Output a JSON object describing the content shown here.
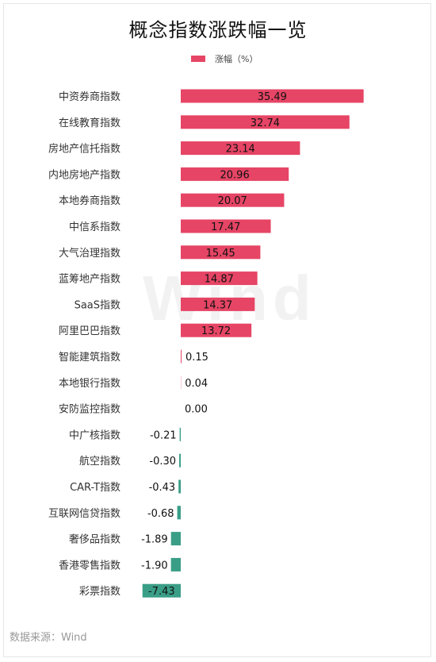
{
  "title": "概念指数涨跌幅一览",
  "watermark": "Wind",
  "source": "数据来源：Wind",
  "colors": {
    "positive": "#e64565",
    "negative": "#3a9e87"
  },
  "chart_data": {
    "type": "bar",
    "orientation": "horizontal",
    "title": "概念指数涨跌幅一览",
    "legend": [
      "涨幅（%）"
    ],
    "legend_position": "top",
    "categories": [
      "中资券商指数",
      "在线教育指数",
      "房地产信托指数",
      "内地房地产指数",
      "本地券商指数",
      "中信系指数",
      "大气治理指数",
      "蓝筹地产指数",
      "SaaS指数",
      "阿里巴巴指数",
      "智能建筑指数",
      "本地银行指数",
      "安防监控指数",
      "中广核指数",
      "航空指数",
      "CAR-T指数",
      "互联网信贷指数",
      "奢侈品指数",
      "香港零售指数",
      "彩票指数"
    ],
    "series": [
      {
        "name": "涨幅（%）",
        "values": [
          35.49,
          32.74,
          23.14,
          20.96,
          20.07,
          17.47,
          15.45,
          14.87,
          14.37,
          13.72,
          0.15,
          0.04,
          0.0,
          -0.21,
          -0.3,
          -0.43,
          -0.68,
          -1.89,
          -1.9,
          -7.43
        ],
        "labels": [
          "35.49",
          "32.74",
          "23.14",
          "20.96",
          "20.07",
          "17.47",
          "15.45",
          "14.87",
          "14.37",
          "13.72",
          "0.15",
          "0.04",
          "0.00",
          "-0.21",
          "-0.30",
          "-0.43",
          "-0.68",
          "-1.89",
          "-1.90",
          "-7.43"
        ]
      }
    ],
    "grid": false
  }
}
